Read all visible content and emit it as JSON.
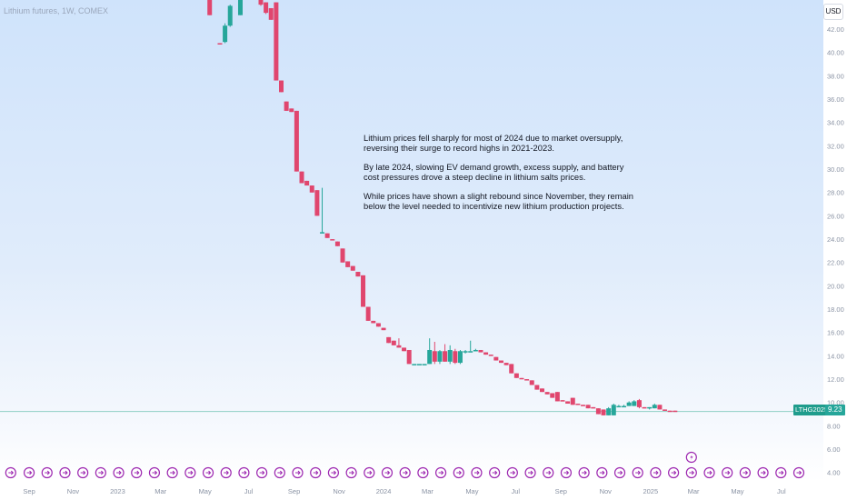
{
  "header": {
    "title": "Lithium futures, 1W, COMEX"
  },
  "currency": {
    "label": "USD"
  },
  "annotation": {
    "paragraphs": [
      "Lithium prices fell sharply for most of 2024 due to market oversupply, reversing their surge to record highs in 2021-2023.",
      "By late 2024, slowing EV demand growth, excess supply, and battery cost pressures drove a steep decline in lithium salts prices.",
      "While prices have shown a slight rebound since November, they remain below the level needed to incentivize new lithium production projects."
    ]
  },
  "price_tag": {
    "symbol": "LTHG2025",
    "value": "9.23"
  },
  "colors": {
    "up": "#26a69a",
    "down": "#e0466e",
    "event_marker": "#9c27b0",
    "last_price_line": "#8fd0c4"
  },
  "icons": {
    "event_marker": "dividend-marker-icon",
    "flash": "lightning-icon"
  },
  "chart_data": {
    "type": "candlestick",
    "title": "Lithium futures, 1W, COMEX",
    "currency": "USD",
    "y_axis": {
      "ticks": [
        4,
        6,
        8,
        10,
        12,
        14,
        16,
        18,
        20,
        22,
        24,
        26,
        28,
        30,
        32,
        34,
        36,
        38,
        40,
        42
      ],
      "tick_labels": [
        "4.00",
        "6.00",
        "8.00",
        "10.00",
        "12.00",
        "14.00",
        "16.00",
        "18.00",
        "20.00",
        "22.00",
        "24.00",
        "26.00",
        "28.00",
        "30.00",
        "32.00",
        "34.00",
        "36.00",
        "38.00",
        "40.00",
        "42.00"
      ],
      "ylim": [
        3.2,
        44.5
      ]
    },
    "x_axis": {
      "ticks": [
        {
          "label": "Sep",
          "x": -14.3
        },
        {
          "label": "Nov",
          "x": -5.7
        },
        {
          "label": "2023",
          "x": 3
        },
        {
          "label": "Mar",
          "x": 11.4
        },
        {
          "label": "May",
          "x": 20.1
        },
        {
          "label": "Jul",
          "x": 28.6
        },
        {
          "label": "Sep",
          "x": 37.5
        },
        {
          "label": "Nov",
          "x": 46.3
        },
        {
          "label": "2024",
          "x": 55
        },
        {
          "label": "Mar",
          "x": 63.6
        },
        {
          "label": "May",
          "x": 72.3
        },
        {
          "label": "Jul",
          "x": 80.8
        },
        {
          "label": "Sep",
          "x": 89.7
        },
        {
          "label": "Nov",
          "x": 98.4
        },
        {
          "label": "2025",
          "x": 107.2
        },
        {
          "label": "Mar",
          "x": 115.6
        },
        {
          "label": "May",
          "x": 124.2
        },
        {
          "label": "Jul",
          "x": 132.8
        }
      ],
      "xlim": [
        -20,
        141
      ]
    },
    "last_price": 9.23,
    "candles": [
      {
        "x": 21,
        "o": 46,
        "h": 46,
        "l": 43.2,
        "c": 43.2
      },
      {
        "x": 23,
        "o": 40.8,
        "h": 40.8,
        "l": 40.7,
        "c": 40.7
      },
      {
        "x": 24,
        "o": 40.9,
        "h": 42.5,
        "l": 40.8,
        "c": 42.3
      },
      {
        "x": 25,
        "o": 42.3,
        "h": 44.1,
        "l": 42.2,
        "c": 44
      },
      {
        "x": 27,
        "o": 43.2,
        "h": 46,
        "l": 43.2,
        "c": 46
      },
      {
        "x": 30,
        "o": 45.2,
        "h": 45.2,
        "l": 44.7,
        "c": 44.7
      },
      {
        "x": 31,
        "o": 44.9,
        "h": 44.9,
        "l": 44,
        "c": 44.1
      },
      {
        "x": 32,
        "o": 44.3,
        "h": 44.3,
        "l": 43.3,
        "c": 43.4
      },
      {
        "x": 33,
        "o": 43.8,
        "h": 43.8,
        "l": 42.8,
        "c": 42.8
      },
      {
        "x": 34,
        "o": 44.3,
        "h": 44.3,
        "l": 37.6,
        "c": 37.6
      },
      {
        "x": 35,
        "o": 37.6,
        "h": 37.6,
        "l": 36.6,
        "c": 36.6
      },
      {
        "x": 36,
        "o": 35.8,
        "h": 35.8,
        "l": 35,
        "c": 35
      },
      {
        "x": 37,
        "o": 35.2,
        "h": 35.2,
        "l": 34.9,
        "c": 34.9
      },
      {
        "x": 38,
        "o": 35,
        "h": 35,
        "l": 29.8,
        "c": 29.8
      },
      {
        "x": 39,
        "o": 29.8,
        "h": 29.8,
        "l": 28.8,
        "c": 28.8
      },
      {
        "x": 40,
        "o": 29,
        "h": 29,
        "l": 28.6,
        "c": 28.6
      },
      {
        "x": 41,
        "o": 28.6,
        "h": 28.6,
        "l": 28,
        "c": 28
      },
      {
        "x": 42,
        "o": 28.2,
        "h": 28.2,
        "l": 26,
        "c": 26
      },
      {
        "x": 43,
        "o": 24.6,
        "h": 28.4,
        "l": 24.5,
        "c": 24.6
      },
      {
        "x": 44,
        "o": 24.5,
        "h": 24.5,
        "l": 24.1,
        "c": 24.1
      },
      {
        "x": 45,
        "o": 24,
        "h": 24,
        "l": 23.9,
        "c": 23.9
      },
      {
        "x": 46,
        "o": 23.8,
        "h": 23.8,
        "l": 23.4,
        "c": 23.4
      },
      {
        "x": 47,
        "o": 23.2,
        "h": 23.2,
        "l": 22,
        "c": 22
      },
      {
        "x": 48,
        "o": 22.1,
        "h": 22.1,
        "l": 21.6,
        "c": 21.6
      },
      {
        "x": 49,
        "o": 21.7,
        "h": 21.7,
        "l": 21.3,
        "c": 21.3
      },
      {
        "x": 50,
        "o": 21.2,
        "h": 21.2,
        "l": 20.8,
        "c": 20.8
      },
      {
        "x": 51,
        "o": 20.9,
        "h": 20.9,
        "l": 18.2,
        "c": 18.2
      },
      {
        "x": 52,
        "o": 18.2,
        "h": 18.2,
        "l": 17,
        "c": 17
      },
      {
        "x": 53,
        "o": 17,
        "h": 17,
        "l": 16.8,
        "c": 16.8
      },
      {
        "x": 54,
        "o": 16.8,
        "h": 16.8,
        "l": 16.5,
        "c": 16.5
      },
      {
        "x": 55,
        "o": 16.4,
        "h": 16.4,
        "l": 16.2,
        "c": 16.2
      },
      {
        "x": 56,
        "o": 15.6,
        "h": 15.6,
        "l": 15.1,
        "c": 15.1
      },
      {
        "x": 57,
        "o": 15.3,
        "h": 15.3,
        "l": 14.9,
        "c": 14.9
      },
      {
        "x": 58,
        "o": 14.9,
        "h": 15.5,
        "l": 14.7,
        "c": 14.7
      },
      {
        "x": 59,
        "o": 14.7,
        "h": 14.7,
        "l": 14.4,
        "c": 14.4
      },
      {
        "x": 60,
        "o": 14.5,
        "h": 14.5,
        "l": 13.3,
        "c": 13.3
      },
      {
        "x": 61,
        "o": 13.3,
        "h": 13.3,
        "l": 13.3,
        "c": 13.3
      },
      {
        "x": 62,
        "o": 13.3,
        "h": 13.3,
        "l": 13.3,
        "c": 13.3
      },
      {
        "x": 63,
        "o": 13.3,
        "h": 13.3,
        "l": 13.3,
        "c": 13.3
      },
      {
        "x": 64,
        "o": 13.3,
        "h": 15.5,
        "l": 13.3,
        "c": 14.5
      },
      {
        "x": 65,
        "o": 14.4,
        "h": 15.2,
        "l": 13.3,
        "c": 13.5
      },
      {
        "x": 66,
        "o": 13.5,
        "h": 14.5,
        "l": 13.3,
        "c": 14.4
      },
      {
        "x": 67,
        "o": 14.4,
        "h": 15,
        "l": 13.5,
        "c": 13.5
      },
      {
        "x": 68,
        "o": 13.5,
        "h": 14.9,
        "l": 13.3,
        "c": 14.5
      },
      {
        "x": 69,
        "o": 14.4,
        "h": 14.6,
        "l": 13.3,
        "c": 13.4
      },
      {
        "x": 70,
        "o": 13.4,
        "h": 14.5,
        "l": 13.3,
        "c": 14.4
      },
      {
        "x": 71,
        "o": 14.4,
        "h": 14.5,
        "l": 14.2,
        "c": 14.4
      },
      {
        "x": 72,
        "o": 14.4,
        "h": 15.3,
        "l": 14.4,
        "c": 14.4
      },
      {
        "x": 73,
        "o": 14.4,
        "h": 14.6,
        "l": 14.4,
        "c": 14.5
      },
      {
        "x": 74,
        "o": 14.5,
        "h": 14.5,
        "l": 14.3,
        "c": 14.3
      },
      {
        "x": 75,
        "o": 14.3,
        "h": 14.3,
        "l": 14.1,
        "c": 14.1
      },
      {
        "x": 76,
        "o": 14.1,
        "h": 14.1,
        "l": 14,
        "c": 14
      },
      {
        "x": 77,
        "o": 13.9,
        "h": 13.9,
        "l": 13.6,
        "c": 13.6
      },
      {
        "x": 78,
        "o": 13.6,
        "h": 13.6,
        "l": 13.4,
        "c": 13.4
      },
      {
        "x": 79,
        "o": 13.4,
        "h": 13.4,
        "l": 13.2,
        "c": 13.2
      },
      {
        "x": 80,
        "o": 13.3,
        "h": 13.3,
        "l": 12.5,
        "c": 12.5
      },
      {
        "x": 81,
        "o": 12.5,
        "h": 12.5,
        "l": 12.1,
        "c": 12.1
      },
      {
        "x": 82,
        "o": 12.1,
        "h": 12.1,
        "l": 12,
        "c": 12
      },
      {
        "x": 83,
        "o": 12,
        "h": 12,
        "l": 11.9,
        "c": 11.9
      },
      {
        "x": 84,
        "o": 11.9,
        "h": 11.9,
        "l": 11.5,
        "c": 11.5
      },
      {
        "x": 85,
        "o": 11.5,
        "h": 11.5,
        "l": 11.1,
        "c": 11.1
      },
      {
        "x": 86,
        "o": 11.2,
        "h": 11.2,
        "l": 10.9,
        "c": 10.9
      },
      {
        "x": 87,
        "o": 10.9,
        "h": 10.9,
        "l": 10.7,
        "c": 10.7
      },
      {
        "x": 88,
        "o": 10.8,
        "h": 10.8,
        "l": 10.4,
        "c": 10.4
      },
      {
        "x": 89,
        "o": 10.9,
        "h": 10.9,
        "l": 10.1,
        "c": 10.1
      },
      {
        "x": 90,
        "o": 10.2,
        "h": 10.2,
        "l": 10.1,
        "c": 10.1
      },
      {
        "x": 91,
        "o": 10.1,
        "h": 10.1,
        "l": 9.9,
        "c": 9.9
      },
      {
        "x": 92,
        "o": 10.4,
        "h": 10.4,
        "l": 9.8,
        "c": 9.8
      },
      {
        "x": 93,
        "o": 9.9,
        "h": 9.9,
        "l": 9.8,
        "c": 9.8
      },
      {
        "x": 94,
        "o": 9.8,
        "h": 9.8,
        "l": 9.7,
        "c": 9.7
      },
      {
        "x": 95,
        "o": 9.8,
        "h": 9.8,
        "l": 9.5,
        "c": 9.5
      },
      {
        "x": 96,
        "o": 9.6,
        "h": 9.6,
        "l": 9.5,
        "c": 9.5
      },
      {
        "x": 97,
        "o": 9.5,
        "h": 9.5,
        "l": 9,
        "c": 9
      },
      {
        "x": 98,
        "o": 9.4,
        "h": 9.4,
        "l": 8.9,
        "c": 8.9
      },
      {
        "x": 99,
        "o": 8.9,
        "h": 9.6,
        "l": 8.9,
        "c": 9.5
      },
      {
        "x": 100,
        "o": 8.9,
        "h": 9.9,
        "l": 8.9,
        "c": 9.8
      },
      {
        "x": 101,
        "o": 9.6,
        "h": 9.8,
        "l": 9.6,
        "c": 9.7
      },
      {
        "x": 102,
        "o": 9.7,
        "h": 9.8,
        "l": 9.6,
        "c": 9.7
      },
      {
        "x": 103,
        "o": 9.7,
        "h": 10.1,
        "l": 9.7,
        "c": 10
      },
      {
        "x": 104,
        "o": 9.7,
        "h": 10.2,
        "l": 9.7,
        "c": 10.1
      },
      {
        "x": 105,
        "o": 10.2,
        "h": 10.3,
        "l": 9.5,
        "c": 9.6
      },
      {
        "x": 106,
        "o": 9.6,
        "h": 9.6,
        "l": 9.5,
        "c": 9.5
      },
      {
        "x": 107,
        "o": 9.5,
        "h": 9.6,
        "l": 9.4,
        "c": 9.6
      },
      {
        "x": 108,
        "o": 9.5,
        "h": 9.9,
        "l": 9.5,
        "c": 9.8
      },
      {
        "x": 109,
        "o": 9.8,
        "h": 9.8,
        "l": 9.4,
        "c": 9.4
      },
      {
        "x": 110,
        "o": 9.4,
        "h": 9.4,
        "l": 9.3,
        "c": 9.3
      },
      {
        "x": 111,
        "o": 9.3,
        "h": 9.3,
        "l": 9.2,
        "c": 9.2
      },
      {
        "x": 112,
        "o": 9.3,
        "h": 9.3,
        "l": 9.2,
        "c": 9.2
      }
    ],
    "event_markers_x": [
      -21.4,
      -17.9,
      -14.3,
      -10.8,
      -7.3,
      -3.8,
      -0.3,
      3.2,
      6.7,
      10.2,
      13.7,
      17.2,
      20.7,
      24.2,
      27.7,
      31.2,
      34.7,
      38.2,
      41.7,
      45.2,
      48.7,
      52.2,
      55.7,
      59.2,
      62.7,
      66.2,
      69.7,
      73.2,
      76.7,
      80.2,
      83.7,
      87.2,
      90.7,
      94.2,
      97.7,
      101.2,
      104.7,
      108.2,
      111.7,
      115.2,
      118.7,
      122.2,
      125.7,
      129.2,
      132.7,
      136.2
    ]
  }
}
